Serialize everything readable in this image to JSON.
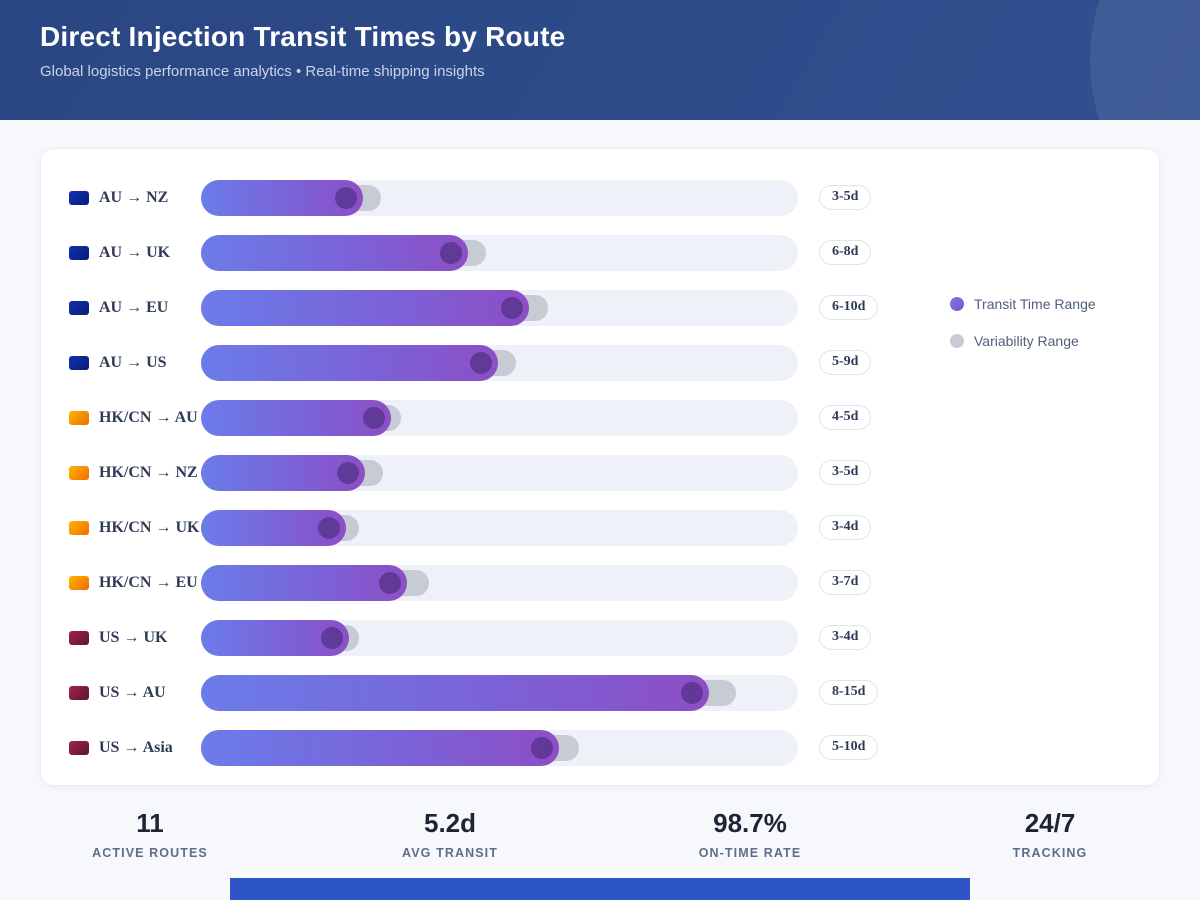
{
  "header": {
    "title": "Direct Injection Transit Times by Route",
    "subtitle": "Global logistics performance analytics • Real-time shipping insights"
  },
  "chart_data": {
    "type": "bar",
    "orientation": "horizontal",
    "unit": "days",
    "title": "Direct Injection Transit Times by Route",
    "axis_max_days": 14.5,
    "grid": false,
    "legend_position": "right",
    "routes": [
      {
        "label": "AU → NZ",
        "group": "au",
        "range_label": "3-5d",
        "min_days": 3,
        "max_days": 5,
        "bar_pct": 27.1,
        "var_pct": 30.2
      },
      {
        "label": "AU → UK",
        "group": "au",
        "range_label": "6-8d",
        "min_days": 6,
        "max_days": 8,
        "bar_pct": 44.7,
        "var_pct": 47.7
      },
      {
        "label": "AU → EU",
        "group": "au",
        "range_label": "6-10d",
        "min_days": 6,
        "max_days": 10,
        "bar_pct": 54.9,
        "var_pct": 58.1
      },
      {
        "label": "AU → US",
        "group": "au",
        "range_label": "5-9d",
        "min_days": 5,
        "max_days": 9,
        "bar_pct": 49.7,
        "var_pct": 52.8
      },
      {
        "label": "HK/CN → AU",
        "group": "hkcn",
        "range_label": "4-5d",
        "min_days": 4,
        "max_days": 5,
        "bar_pct": 31.8,
        "var_pct": 33.5
      },
      {
        "label": "HK/CN → NZ",
        "group": "hkcn",
        "range_label": "3-5d",
        "min_days": 3,
        "max_days": 5,
        "bar_pct": 27.5,
        "var_pct": 30.5
      },
      {
        "label": "HK/CN → UK",
        "group": "hkcn",
        "range_label": "3-4d",
        "min_days": 3,
        "max_days": 4,
        "bar_pct": 24.3,
        "var_pct": 26.5
      },
      {
        "label": "HK/CN → EU",
        "group": "hkcn",
        "range_label": "3-7d",
        "min_days": 3,
        "max_days": 7,
        "bar_pct": 34.5,
        "var_pct": 38.2
      },
      {
        "label": "US → UK",
        "group": "us",
        "range_label": "3-4d",
        "min_days": 3,
        "max_days": 4,
        "bar_pct": 24.8,
        "var_pct": 26.5
      },
      {
        "label": "US → AU",
        "group": "us",
        "range_label": "8-15d",
        "min_days": 8,
        "max_days": 15,
        "bar_pct": 85.1,
        "var_pct": 89.6
      },
      {
        "label": "US → Asia",
        "group": "us",
        "range_label": "5-10d",
        "min_days": 5,
        "max_days": 10,
        "bar_pct": 60.0,
        "var_pct": 63.3
      }
    ]
  },
  "legend": {
    "items": [
      {
        "label": "Transit Time Range",
        "style": "transit",
        "color": "#7a63d8"
      },
      {
        "label": "Variability Range",
        "style": "variability",
        "color": "#c7cbd4"
      }
    ]
  },
  "stats": [
    {
      "value": "11",
      "label": "ACTIVE ROUTES"
    },
    {
      "value": "5.2d",
      "label": "AVG TRANSIT"
    },
    {
      "value": "98.7%",
      "label": "ON-TIME RATE"
    },
    {
      "value": "24/7",
      "label": "TRACKING"
    }
  ],
  "colors": {
    "header_bg": "#2d4b8c",
    "bar_gradient_start": "#6b7ce9",
    "bar_gradient_end": "#8d4ec5",
    "variability_gray": "#c7cbd4",
    "track": "#eef1f7",
    "flag_au": "#0d2a9a",
    "flag_hkcn": "#f28c00",
    "flag_us": "#8a1f3e",
    "footer_bar": "#2e55c4"
  }
}
